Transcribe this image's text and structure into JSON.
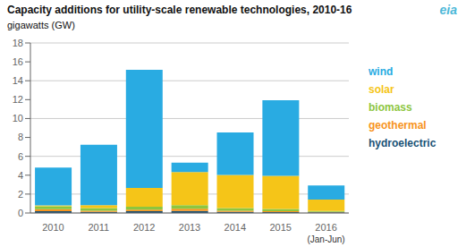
{
  "chart_data": {
    "type": "bar",
    "title": "Capacity additions for utility-scale renewable technologies, 2010-16",
    "subtitle": "gigawatts (GW)",
    "categories": [
      "2010",
      "2011",
      "2012",
      "2013",
      "2014",
      "2015",
      "2016"
    ],
    "series": [
      {
        "name": "hydroelectric",
        "color": "#1a5276",
        "values": [
          0.2,
          0.12,
          0.18,
          0.22,
          0.12,
          0.1,
          0.06
        ]
      },
      {
        "name": "geothermal",
        "color": "#f7941d",
        "values": [
          0.2,
          0.12,
          0.18,
          0.22,
          0.12,
          0.08,
          0.06
        ]
      },
      {
        "name": "biomass",
        "color": "#8dc63f",
        "values": [
          0.3,
          0.28,
          0.3,
          0.4,
          0.28,
          0.25,
          0.1
        ]
      },
      {
        "name": "solar",
        "color": "#f5c518",
        "values": [
          0.1,
          0.3,
          2.0,
          3.5,
          3.5,
          3.5,
          1.2
        ]
      },
      {
        "name": "wind",
        "color": "#29abe2",
        "values": [
          4.0,
          6.4,
          12.5,
          1.0,
          4.5,
          8.0,
          1.5
        ]
      }
    ],
    "stacked": true,
    "ylim": [
      0,
      18
    ],
    "yticks": [
      0,
      2,
      4,
      6,
      8,
      10,
      12,
      14,
      16,
      18
    ],
    "grid": true,
    "legend": "right",
    "annotations": [
      {
        "text": "(Jan-Jun)",
        "x": "2016"
      },
      {
        "text": "eia"
      }
    ]
  }
}
